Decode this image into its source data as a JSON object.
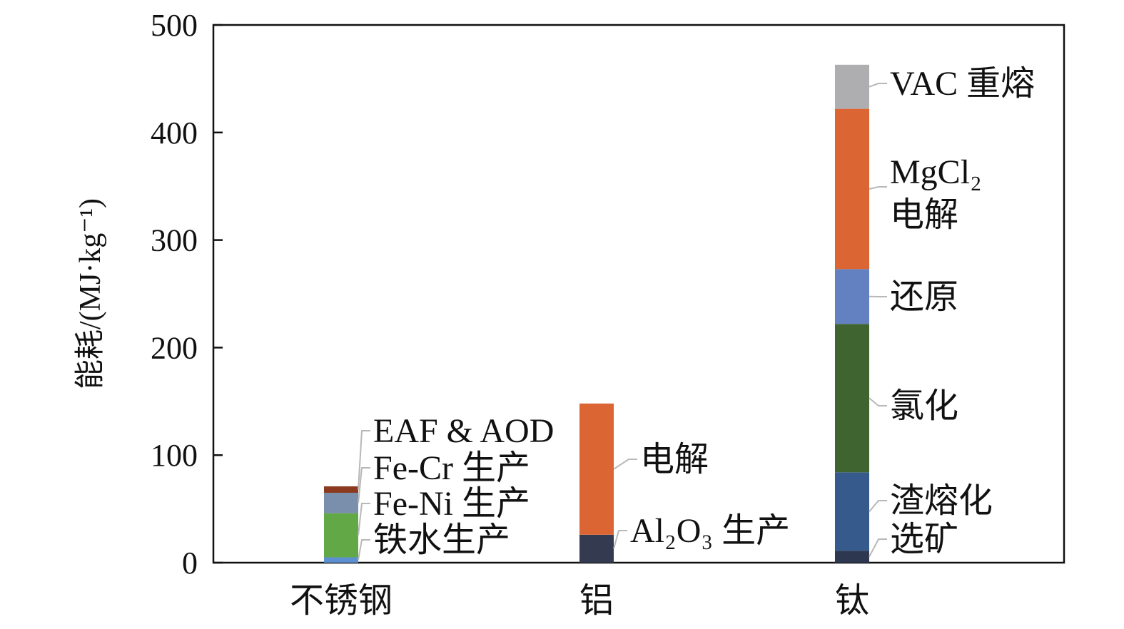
{
  "chart_data": {
    "type": "bar",
    "stacked": true,
    "title": "",
    "xlabel": "",
    "ylabel": "能耗/(MJ·kg⁻¹)",
    "ylim": [
      0,
      500
    ],
    "yticks": [
      "0",
      "100",
      "200",
      "300",
      "400",
      "500"
    ],
    "grid": false,
    "categories": [
      "不锈钢",
      "铝",
      "钛"
    ],
    "stacks": [
      {
        "category": "不锈钢",
        "segments": [
          {
            "label": [
              "铁水生产"
            ],
            "value": 5,
            "color": "#5b8fd0"
          },
          {
            "label": [
              "Fe-Ni 生产"
            ],
            "value": 41,
            "color": "#62a846"
          },
          {
            "label": [
              "Fe-Cr 生产"
            ],
            "value": 19,
            "color": "#7a8fab"
          },
          {
            "label": [
              "EAF & AOD"
            ],
            "value": 6,
            "color": "#8b3a20"
          }
        ]
      },
      {
        "category": "铝",
        "segments": [
          {
            "label": [
              "Al₂O₃ 生产"
            ],
            "value": 26,
            "color": "#343b50"
          },
          {
            "label": [
              "电解"
            ],
            "value": 122,
            "color": "#dc6633"
          }
        ]
      },
      {
        "category": "钛",
        "segments": [
          {
            "label": [
              "选矿"
            ],
            "value": 11,
            "color": "#2e3750"
          },
          {
            "label": [
              "渣熔化"
            ],
            "value": 73,
            "color": "#375a8c"
          },
          {
            "label": [
              "氯化"
            ],
            "value": 138,
            "color": "#3f6430"
          },
          {
            "label": [
              "还原"
            ],
            "value": 51,
            "color": "#6380c0"
          },
          {
            "label": [
              "MgCl₂",
              "电解"
            ],
            "value": 149,
            "color": "#dc6633"
          },
          {
            "label": [
              "VAC 重熔"
            ],
            "value": 41,
            "color": "#aeaeb0"
          }
        ]
      }
    ]
  }
}
